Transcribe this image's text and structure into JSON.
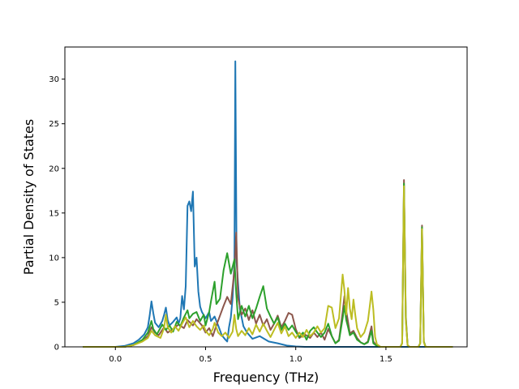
{
  "chart_data": {
    "type": "line",
    "title": "",
    "xlabel": "Frequency (THz)",
    "ylabel": "Partial Density of States",
    "xlim": [
      -0.28,
      1.95
    ],
    "ylim": [
      0,
      33.6
    ],
    "xticks": [
      0.0,
      0.5,
      1.0,
      1.5
    ],
    "xtick_labels": [
      "0.0",
      "0.5",
      "1.0",
      "1.5"
    ],
    "yticks": [
      0,
      5,
      10,
      15,
      20,
      25,
      30
    ],
    "ytick_labels": [
      "0",
      "5",
      "10",
      "15",
      "20",
      "25",
      "30"
    ],
    "grid": false,
    "legend": "none",
    "series": [
      {
        "color": "#1f77b4",
        "points": [
          [
            -0.18,
            0
          ],
          [
            0.0,
            0
          ],
          [
            0.05,
            0.1
          ],
          [
            0.1,
            0.4
          ],
          [
            0.13,
            0.8
          ],
          [
            0.16,
            1.4
          ],
          [
            0.18,
            2.2
          ],
          [
            0.19,
            3.5
          ],
          [
            0.2,
            5.1
          ],
          [
            0.21,
            3.8
          ],
          [
            0.22,
            2.7
          ],
          [
            0.24,
            2.2
          ],
          [
            0.26,
            2.9
          ],
          [
            0.27,
            3.6
          ],
          [
            0.28,
            4.4
          ],
          [
            0.29,
            3.0
          ],
          [
            0.3,
            2.4
          ],
          [
            0.32,
            2.8
          ],
          [
            0.34,
            3.3
          ],
          [
            0.35,
            2.6
          ],
          [
            0.36,
            3.2
          ],
          [
            0.37,
            5.7
          ],
          [
            0.38,
            4.2
          ],
          [
            0.39,
            6.8
          ],
          [
            0.4,
            15.8
          ],
          [
            0.41,
            16.3
          ],
          [
            0.42,
            15.2
          ],
          [
            0.43,
            17.4
          ],
          [
            0.44,
            9.0
          ],
          [
            0.45,
            10.0
          ],
          [
            0.46,
            6.2
          ],
          [
            0.47,
            4.5
          ],
          [
            0.48,
            3.9
          ],
          [
            0.5,
            3.2
          ],
          [
            0.52,
            3.9
          ],
          [
            0.53,
            2.9
          ],
          [
            0.55,
            3.4
          ],
          [
            0.57,
            2.4
          ],
          [
            0.59,
            1.3
          ],
          [
            0.61,
            0.8
          ],
          [
            0.62,
            0.6
          ],
          [
            0.63,
            2.2
          ],
          [
            0.64,
            3.3
          ],
          [
            0.65,
            5.5
          ],
          [
            0.66,
            9.5
          ],
          [
            0.665,
            32.0
          ],
          [
            0.672,
            9.5
          ],
          [
            0.69,
            4.3
          ],
          [
            0.71,
            2.3
          ],
          [
            0.73,
            1.6
          ],
          [
            0.76,
            0.9
          ],
          [
            0.8,
            1.2
          ],
          [
            0.85,
            0.6
          ],
          [
            0.9,
            0.4
          ],
          [
            0.95,
            0.15
          ],
          [
            1.0,
            0.05
          ],
          [
            1.05,
            0
          ],
          [
            1.87,
            0
          ]
        ]
      },
      {
        "color": "#8c564b",
        "points": [
          [
            -0.18,
            0
          ],
          [
            0.05,
            0
          ],
          [
            0.1,
            0.2
          ],
          [
            0.15,
            0.7
          ],
          [
            0.18,
            1.2
          ],
          [
            0.2,
            2.2
          ],
          [
            0.22,
            1.6
          ],
          [
            0.24,
            1.3
          ],
          [
            0.27,
            2.2
          ],
          [
            0.29,
            1.6
          ],
          [
            0.32,
            2.0
          ],
          [
            0.35,
            2.5
          ],
          [
            0.38,
            2.1
          ],
          [
            0.4,
            3.0
          ],
          [
            0.43,
            2.4
          ],
          [
            0.45,
            3.1
          ],
          [
            0.48,
            2.4
          ],
          [
            0.5,
            1.6
          ],
          [
            0.52,
            2.1
          ],
          [
            0.54,
            1.2
          ],
          [
            0.56,
            2.4
          ],
          [
            0.58,
            3.5
          ],
          [
            0.6,
            4.6
          ],
          [
            0.62,
            5.6
          ],
          [
            0.64,
            4.8
          ],
          [
            0.66,
            8.6
          ],
          [
            0.67,
            12.8
          ],
          [
            0.68,
            5.5
          ],
          [
            0.7,
            3.6
          ],
          [
            0.72,
            4.3
          ],
          [
            0.74,
            3.0
          ],
          [
            0.76,
            4.1
          ],
          [
            0.78,
            2.6
          ],
          [
            0.8,
            3.6
          ],
          [
            0.82,
            2.4
          ],
          [
            0.84,
            3.1
          ],
          [
            0.86,
            1.9
          ],
          [
            0.88,
            2.6
          ],
          [
            0.9,
            3.5
          ],
          [
            0.92,
            2.2
          ],
          [
            0.94,
            2.9
          ],
          [
            0.96,
            3.8
          ],
          [
            0.98,
            3.6
          ],
          [
            1.0,
            2.0
          ],
          [
            1.02,
            1.0
          ],
          [
            1.05,
            1.4
          ],
          [
            1.08,
            1.0
          ],
          [
            1.1,
            1.6
          ],
          [
            1.12,
            1.1
          ],
          [
            1.14,
            1.6
          ],
          [
            1.16,
            0.8
          ],
          [
            1.18,
            2.0
          ],
          [
            1.2,
            1.2
          ],
          [
            1.22,
            0.4
          ],
          [
            1.24,
            0.8
          ],
          [
            1.26,
            3.9
          ],
          [
            1.27,
            5.7
          ],
          [
            1.28,
            4.0
          ],
          [
            1.29,
            2.8
          ],
          [
            1.3,
            1.5
          ],
          [
            1.32,
            1.8
          ],
          [
            1.34,
            1.0
          ],
          [
            1.36,
            0.5
          ],
          [
            1.38,
            0.3
          ],
          [
            1.4,
            0.6
          ],
          [
            1.42,
            2.3
          ],
          [
            1.43,
            0.6
          ],
          [
            1.45,
            0.1
          ],
          [
            1.47,
            0
          ],
          [
            1.58,
            0
          ],
          [
            1.59,
            0.4
          ],
          [
            1.6,
            18.7
          ],
          [
            1.61,
            3.5
          ],
          [
            1.62,
            0.2
          ],
          [
            1.63,
            0
          ],
          [
            1.68,
            0
          ],
          [
            1.69,
            0.4
          ],
          [
            1.7,
            13.6
          ],
          [
            1.71,
            0.6
          ],
          [
            1.72,
            0
          ],
          [
            1.87,
            0
          ]
        ]
      },
      {
        "color": "#2ca02c",
        "points": [
          [
            -0.18,
            0
          ],
          [
            0.05,
            0
          ],
          [
            0.1,
            0.2
          ],
          [
            0.15,
            0.8
          ],
          [
            0.18,
            1.6
          ],
          [
            0.2,
            2.9
          ],
          [
            0.21,
            2.0
          ],
          [
            0.23,
            1.4
          ],
          [
            0.26,
            2.5
          ],
          [
            0.28,
            1.9
          ],
          [
            0.3,
            2.4
          ],
          [
            0.32,
            1.7
          ],
          [
            0.34,
            2.8
          ],
          [
            0.36,
            2.3
          ],
          [
            0.38,
            3.3
          ],
          [
            0.4,
            4.1
          ],
          [
            0.41,
            3.2
          ],
          [
            0.43,
            3.7
          ],
          [
            0.45,
            3.9
          ],
          [
            0.47,
            2.9
          ],
          [
            0.49,
            3.6
          ],
          [
            0.5,
            2.4
          ],
          [
            0.52,
            3.9
          ],
          [
            0.53,
            5.1
          ],
          [
            0.55,
            7.3
          ],
          [
            0.56,
            4.8
          ],
          [
            0.58,
            5.4
          ],
          [
            0.6,
            8.6
          ],
          [
            0.62,
            10.5
          ],
          [
            0.64,
            8.2
          ],
          [
            0.66,
            9.8
          ],
          [
            0.67,
            6.0
          ],
          [
            0.68,
            3.1
          ],
          [
            0.7,
            4.6
          ],
          [
            0.72,
            3.4
          ],
          [
            0.74,
            4.6
          ],
          [
            0.76,
            3.2
          ],
          [
            0.78,
            4.3
          ],
          [
            0.8,
            5.6
          ],
          [
            0.82,
            6.8
          ],
          [
            0.84,
            4.3
          ],
          [
            0.86,
            3.4
          ],
          [
            0.88,
            2.6
          ],
          [
            0.9,
            3.3
          ],
          [
            0.92,
            1.9
          ],
          [
            0.94,
            2.6
          ],
          [
            0.96,
            1.9
          ],
          [
            0.98,
            2.4
          ],
          [
            1.0,
            1.7
          ],
          [
            1.02,
            1.1
          ],
          [
            1.04,
            1.6
          ],
          [
            1.06,
            0.8
          ],
          [
            1.08,
            1.8
          ],
          [
            1.1,
            2.2
          ],
          [
            1.12,
            1.6
          ],
          [
            1.14,
            1.1
          ],
          [
            1.16,
            1.6
          ],
          [
            1.18,
            2.6
          ],
          [
            1.2,
            1.2
          ],
          [
            1.22,
            0.4
          ],
          [
            1.24,
            0.7
          ],
          [
            1.26,
            3.2
          ],
          [
            1.27,
            4.6
          ],
          [
            1.28,
            3.0
          ],
          [
            1.29,
            2.2
          ],
          [
            1.3,
            1.3
          ],
          [
            1.32,
            1.6
          ],
          [
            1.34,
            0.8
          ],
          [
            1.36,
            0.5
          ],
          [
            1.38,
            0.3
          ],
          [
            1.4,
            0.5
          ],
          [
            1.42,
            1.8
          ],
          [
            1.43,
            0.4
          ],
          [
            1.45,
            0.1
          ],
          [
            1.47,
            0
          ],
          [
            1.58,
            0
          ],
          [
            1.59,
            0.4
          ],
          [
            1.6,
            18.3
          ],
          [
            1.61,
            3.2
          ],
          [
            1.62,
            0.2
          ],
          [
            1.63,
            0
          ],
          [
            1.68,
            0
          ],
          [
            1.69,
            0.4
          ],
          [
            1.7,
            13.4
          ],
          [
            1.71,
            0.6
          ],
          [
            1.72,
            0
          ],
          [
            1.87,
            0
          ]
        ]
      },
      {
        "color": "#bcbd22",
        "points": [
          [
            -0.18,
            0
          ],
          [
            0.05,
            0
          ],
          [
            0.1,
            0.2
          ],
          [
            0.15,
            0.6
          ],
          [
            0.18,
            1.0
          ],
          [
            0.2,
            1.8
          ],
          [
            0.22,
            1.3
          ],
          [
            0.25,
            1.0
          ],
          [
            0.27,
            2.1
          ],
          [
            0.28,
            3.6
          ],
          [
            0.29,
            2.2
          ],
          [
            0.31,
            1.6
          ],
          [
            0.33,
            2.3
          ],
          [
            0.35,
            1.8
          ],
          [
            0.37,
            2.6
          ],
          [
            0.39,
            3.3
          ],
          [
            0.41,
            2.2
          ],
          [
            0.43,
            2.9
          ],
          [
            0.45,
            2.3
          ],
          [
            0.47,
            1.9
          ],
          [
            0.49,
            2.4
          ],
          [
            0.5,
            1.8
          ],
          [
            0.52,
            1.3
          ],
          [
            0.54,
            2.0
          ],
          [
            0.55,
            2.7
          ],
          [
            0.57,
            1.6
          ],
          [
            0.59,
            1.2
          ],
          [
            0.61,
            1.6
          ],
          [
            0.63,
            1.0
          ],
          [
            0.65,
            1.7
          ],
          [
            0.66,
            3.6
          ],
          [
            0.67,
            2.0
          ],
          [
            0.68,
            1.2
          ],
          [
            0.7,
            1.8
          ],
          [
            0.72,
            1.3
          ],
          [
            0.74,
            2.1
          ],
          [
            0.76,
            1.4
          ],
          [
            0.78,
            2.5
          ],
          [
            0.8,
            1.7
          ],
          [
            0.82,
            2.6
          ],
          [
            0.84,
            1.8
          ],
          [
            0.86,
            1.1
          ],
          [
            0.88,
            1.9
          ],
          [
            0.9,
            2.7
          ],
          [
            0.92,
            1.5
          ],
          [
            0.94,
            2.3
          ],
          [
            0.96,
            1.2
          ],
          [
            0.98,
            1.6
          ],
          [
            1.0,
            1.0
          ],
          [
            1.02,
            1.6
          ],
          [
            1.04,
            1.1
          ],
          [
            1.06,
            1.9
          ],
          [
            1.08,
            1.2
          ],
          [
            1.1,
            1.6
          ],
          [
            1.12,
            2.3
          ],
          [
            1.14,
            1.6
          ],
          [
            1.16,
            2.1
          ],
          [
            1.18,
            4.6
          ],
          [
            1.2,
            4.4
          ],
          [
            1.22,
            2.1
          ],
          [
            1.24,
            3.2
          ],
          [
            1.26,
            8.1
          ],
          [
            1.27,
            6.3
          ],
          [
            1.28,
            3.6
          ],
          [
            1.29,
            6.6
          ],
          [
            1.3,
            4.3
          ],
          [
            1.31,
            3.1
          ],
          [
            1.32,
            5.3
          ],
          [
            1.33,
            3.6
          ],
          [
            1.34,
            2.1
          ],
          [
            1.36,
            1.1
          ],
          [
            1.38,
            1.6
          ],
          [
            1.4,
            2.9
          ],
          [
            1.41,
            4.5
          ],
          [
            1.42,
            6.2
          ],
          [
            1.43,
            4.2
          ],
          [
            1.44,
            1.1
          ],
          [
            1.45,
            0.3
          ],
          [
            1.47,
            0
          ],
          [
            1.58,
            0
          ],
          [
            1.59,
            0.4
          ],
          [
            1.6,
            18.0
          ],
          [
            1.61,
            3.0
          ],
          [
            1.62,
            0.2
          ],
          [
            1.63,
            0
          ],
          [
            1.68,
            0
          ],
          [
            1.69,
            0.4
          ],
          [
            1.7,
            13.2
          ],
          [
            1.71,
            0.5
          ],
          [
            1.72,
            0
          ],
          [
            1.87,
            0
          ]
        ]
      }
    ]
  }
}
